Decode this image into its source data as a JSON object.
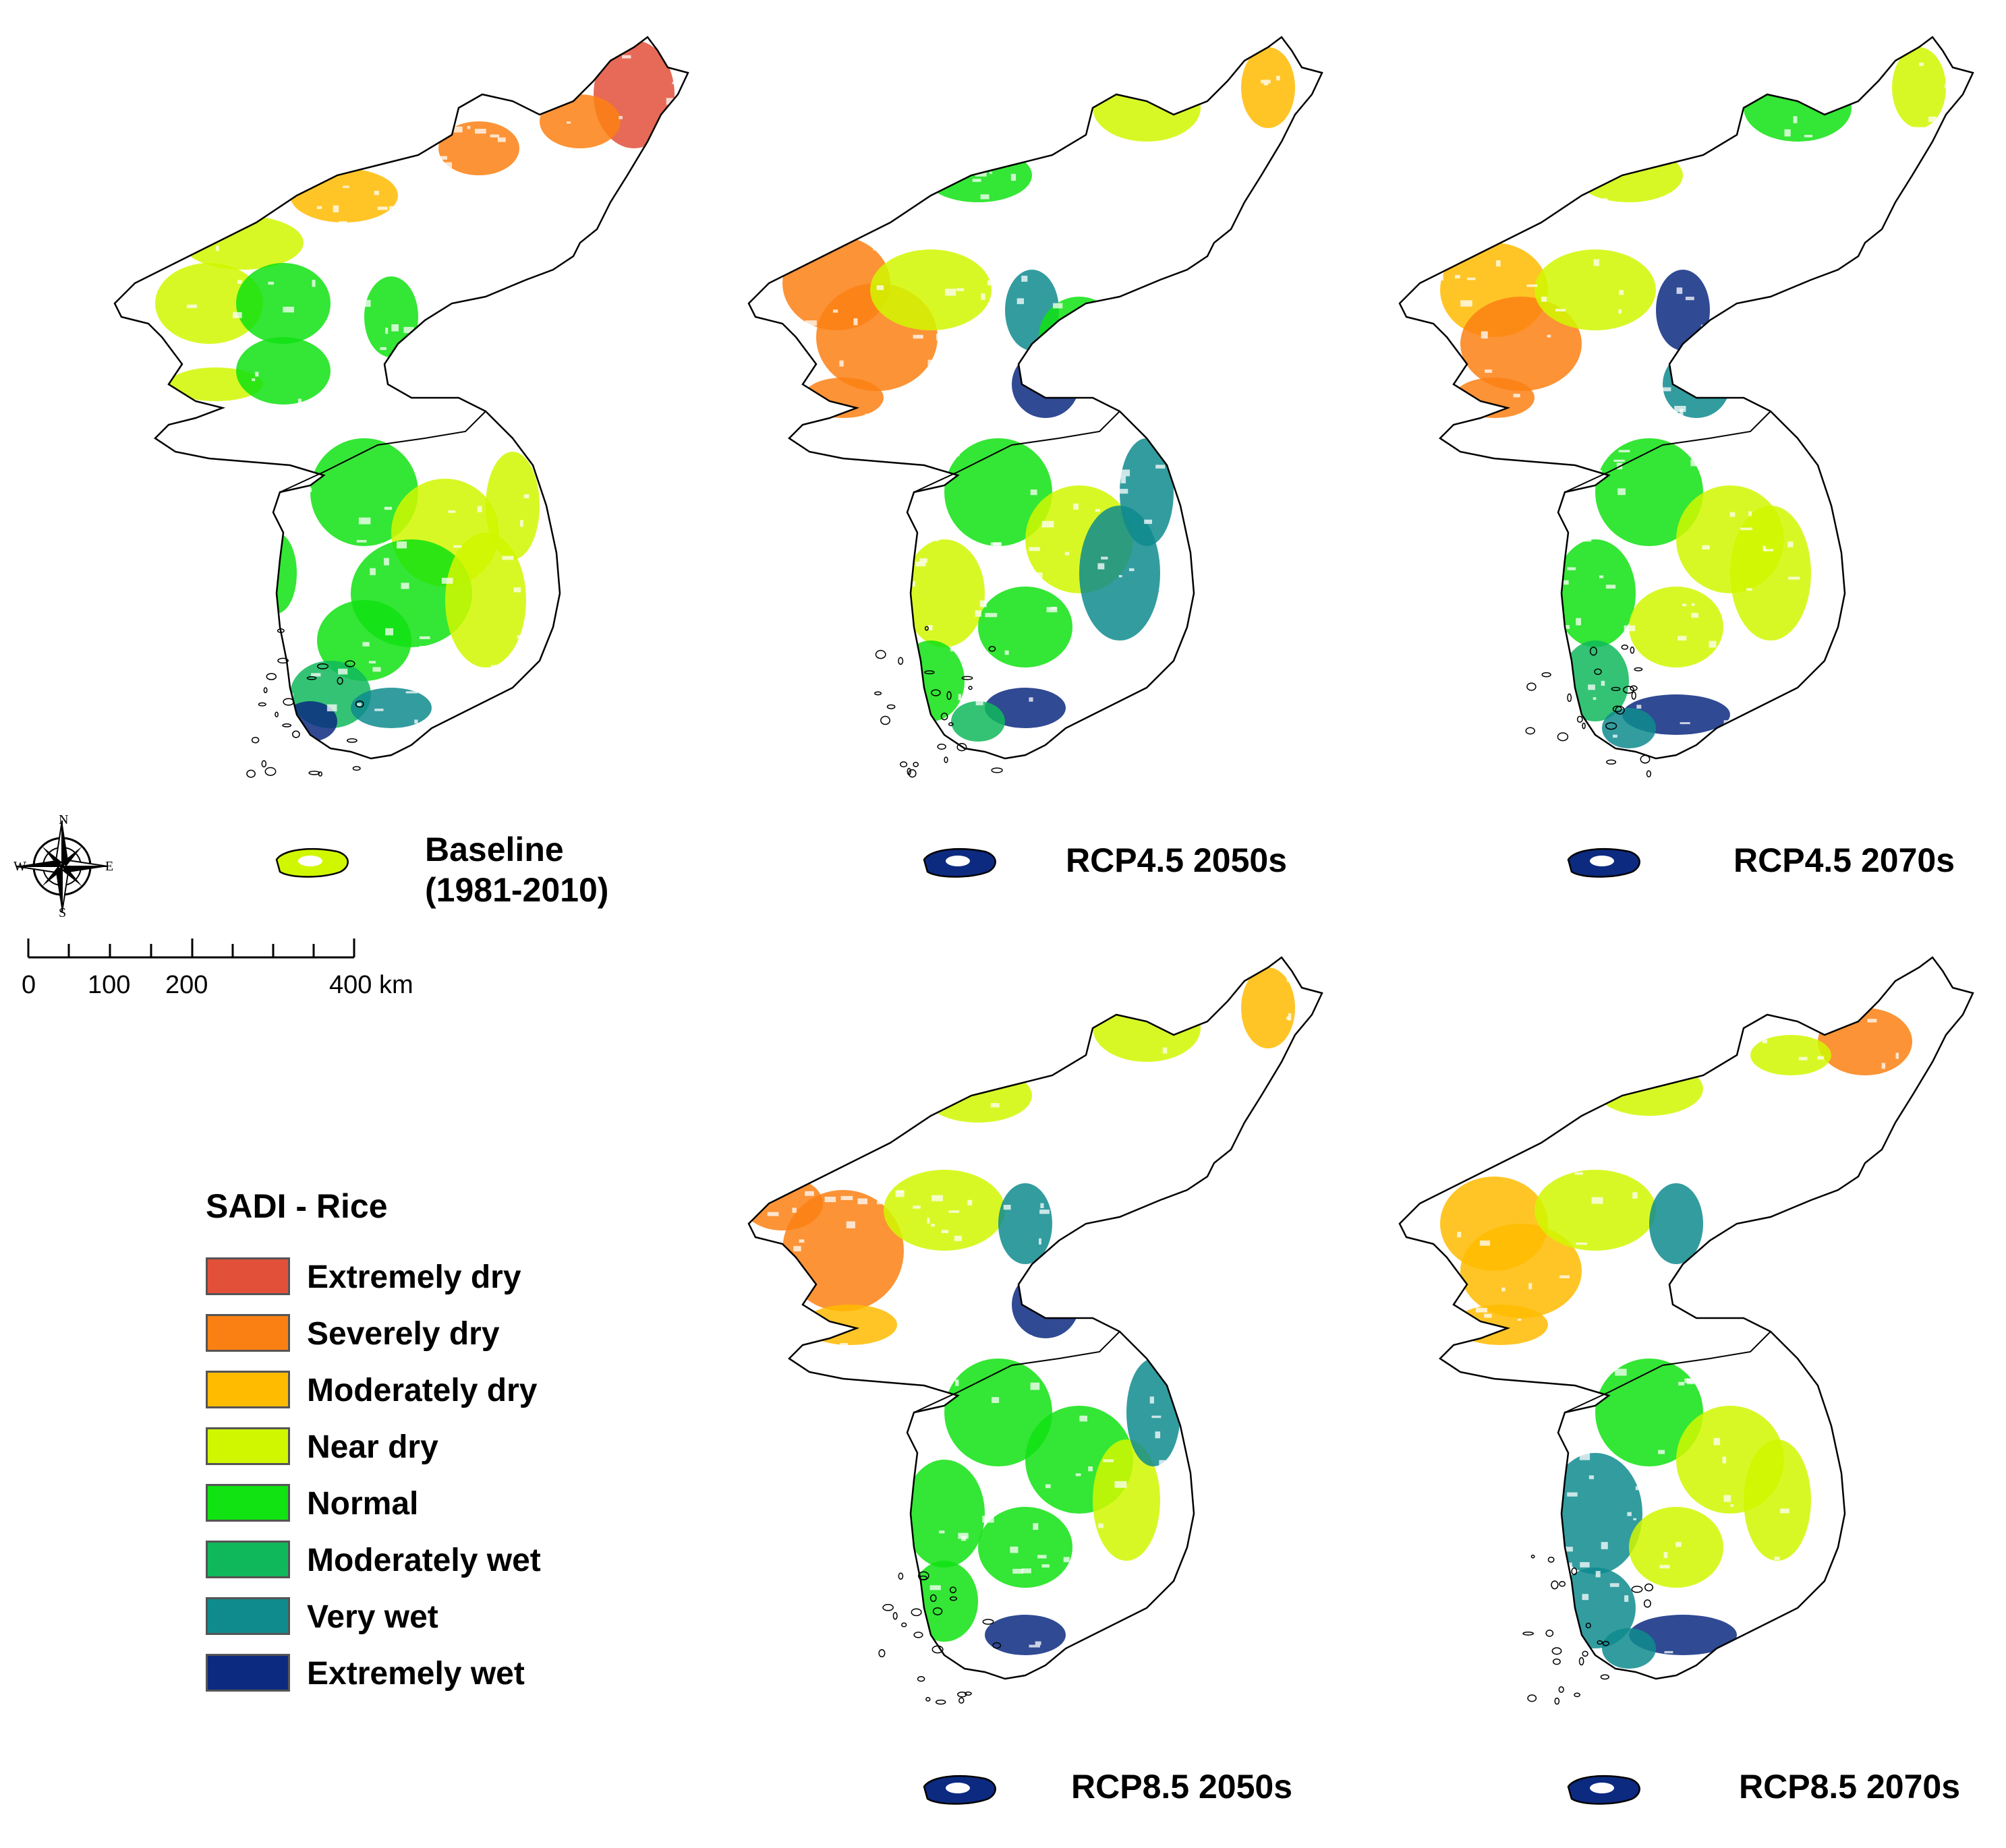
{
  "panels": [
    {
      "id": "baseline",
      "title_line1": "Baseline",
      "title_line2": "(1981-2010)",
      "scenario": "baseline"
    },
    {
      "id": "rcp45-2050",
      "title_line1": "RCP4.5 2050s",
      "title_line2": "",
      "scenario": "rcp45_2050"
    },
    {
      "id": "rcp45-2070",
      "title_line1": "RCP4.5 2070s",
      "title_line2": "",
      "scenario": "rcp45_2070"
    },
    {
      "id": "rcp85-2050",
      "title_line1": "RCP8.5 2050s",
      "title_line2": "",
      "scenario": "rcp85_2050"
    },
    {
      "id": "rcp85-2070",
      "title_line1": "RCP8.5 2070s",
      "title_line2": "",
      "scenario": "rcp85_2070"
    }
  ],
  "legend": {
    "title": "SADI - Rice",
    "items": [
      {
        "label": "Extremely dry",
        "color": "#e2503a"
      },
      {
        "label": "Severely dry",
        "color": "#fb8013"
      },
      {
        "label": "Moderately dry",
        "color": "#ffbb00"
      },
      {
        "label": "Near dry",
        "color": "#d1f700"
      },
      {
        "label": "Normal",
        "color": "#11e212"
      },
      {
        "label": "Moderately wet",
        "color": "#10b85c"
      },
      {
        "label": "Very wet",
        "color": "#0f8b8e"
      },
      {
        "label": "Extremely wet",
        "color": "#0c2a80"
      }
    ]
  },
  "scale_bar": {
    "labels": [
      "0",
      "100",
      "200",
      "400 km"
    ]
  },
  "compass": {
    "n": "N",
    "s": "S",
    "e": "E",
    "w": "W"
  }
}
